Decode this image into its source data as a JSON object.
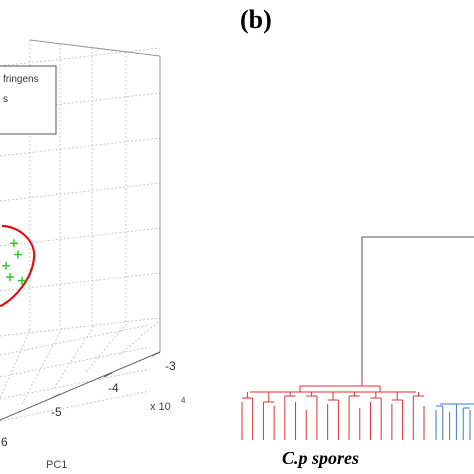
{
  "panel_label": "(b)",
  "chart_data": [
    {
      "type": "scatter",
      "projection": "3d",
      "grid": true,
      "xlabel": "PC1",
      "x_ticks": [
        "6",
        "-5",
        "-4",
        "-3"
      ],
      "x_exponent": "x 10",
      "x_exponent_power": "4",
      "legend": {
        "placement": "top-left",
        "entries": [
          "fringens",
          "s"
        ]
      },
      "series": [
        {
          "color": "#22cc22",
          "marker": "plus",
          "points": [
            {
              "x": -5.05,
              "y": 0.2
            },
            {
              "x": -4.95,
              "y": 0.5
            },
            {
              "x": -5.1,
              "y": 0.35
            },
            {
              "x": -4.9,
              "y": 0.15
            },
            {
              "x": -5.0,
              "y": 0.65
            }
          ]
        }
      ],
      "cluster_outline_color": "#dd1111"
    },
    {
      "type": "dendrogram",
      "cluster_label": "C.p spores",
      "colors": {
        "root": "#555555",
        "cluster_a": "#e03030",
        "cluster_b": "#3a7ad0"
      },
      "cluster_a_leaves": 18,
      "cluster_b_leaves": 6
    }
  ]
}
